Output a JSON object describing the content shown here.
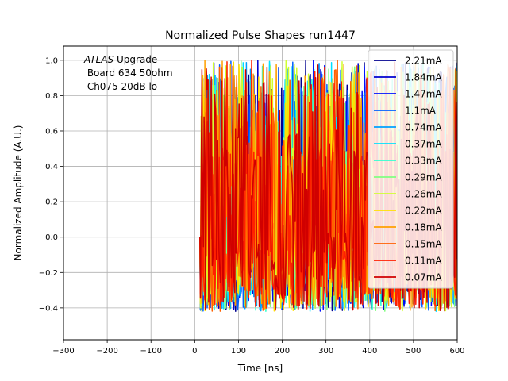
{
  "chart_data": {
    "type": "line",
    "title": "Normalized Pulse Shapes run1447",
    "xlabel": "Time [ns]",
    "ylabel": "Normalized Amplitude (A.U.)",
    "xlim": [
      -300,
      600
    ],
    "ylim": [
      -0.58,
      1.08
    ],
    "xticks": [
      -300,
      -200,
      -100,
      0,
      100,
      200,
      300,
      400,
      500,
      600
    ],
    "xtick_labels": [
      "−300",
      "−200",
      "−100",
      "0",
      "100",
      "200",
      "300",
      "400",
      "500",
      "600"
    ],
    "yticks": [
      -0.4,
      -0.2,
      0.0,
      0.2,
      0.4,
      0.6,
      0.8,
      1.0
    ],
    "ytick_labels": [
      "−0.4",
      "−0.2",
      "0.0",
      "0.2",
      "0.4",
      "0.6",
      "0.8",
      "1.0"
    ],
    "grid": true,
    "legend_position": "top-right",
    "annotation": {
      "italic": "ATLAS",
      "line1_rest": " Upgrade",
      "line2": " Board 634 50ohm",
      "line3": " Ch075 20dB lo"
    },
    "series": [
      {
        "name": "2.21mA",
        "color": "#00008f",
        "seed": 11
      },
      {
        "name": "1.84mA",
        "color": "#0000d0",
        "seed": 23
      },
      {
        "name": "1.47mA",
        "color": "#0010ff",
        "seed": 37
      },
      {
        "name": "1.1mA",
        "color": "#0060ff",
        "seed": 41
      },
      {
        "name": "0.74mA",
        "color": "#00a0ff",
        "seed": 53
      },
      {
        "name": "0.37mA",
        "color": "#00e0ff",
        "seed": 67
      },
      {
        "name": "0.33mA",
        "color": "#30ffd0",
        "seed": 71
      },
      {
        "name": "0.29mA",
        "color": "#80ff80",
        "seed": 83
      },
      {
        "name": "0.26mA",
        "color": "#d0ff30",
        "seed": 97
      },
      {
        "name": "0.22mA",
        "color": "#ffe000",
        "seed": 101
      },
      {
        "name": "0.18mA",
        "color": "#ffa000",
        "seed": 113
      },
      {
        "name": "0.15mA",
        "color": "#ff6000",
        "seed": 127
      },
      {
        "name": "0.11mA",
        "color": "#ff2000",
        "seed": 131
      },
      {
        "name": "0.07mA",
        "color": "#d00000",
        "seed": 149
      }
    ]
  }
}
